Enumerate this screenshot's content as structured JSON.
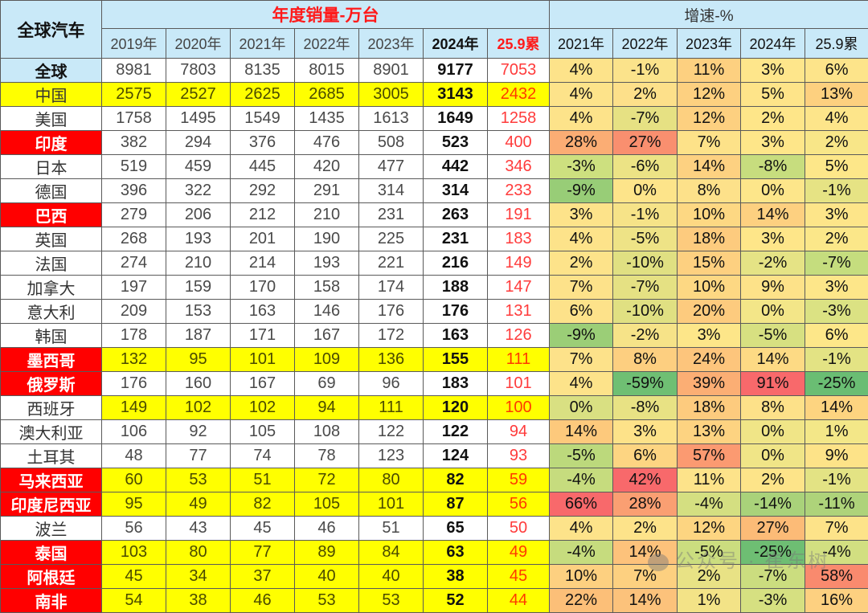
{
  "table": {
    "corner_label": "全球汽车",
    "group_sales_label": "年度销量-万台",
    "group_growth_label": "增速-%",
    "sales_years": [
      "2019年",
      "2020年",
      "2021年",
      "2022年",
      "2023年",
      "2024年",
      "25.9累"
    ],
    "growth_years": [
      "2021年",
      "2022年",
      "2023年",
      "2024年",
      "25.9累"
    ],
    "rows": [
      {
        "country": "全球",
        "style": "total",
        "sales": [
          "8981",
          "7803",
          "8135",
          "8015",
          "8901",
          "9177",
          "7053"
        ],
        "growth": [
          "4%",
          "-1%",
          "11%",
          "3%",
          "6%"
        ],
        "growth_colors": [
          "#fde38a",
          "#fbe38b",
          "#fdd080",
          "#fee68b",
          "#fde48a"
        ]
      },
      {
        "country": "中国",
        "style": "yellow",
        "sales": [
          "2575",
          "2527",
          "2625",
          "2685",
          "3005",
          "3143",
          "2432"
        ],
        "growth": [
          "4%",
          "2%",
          "12%",
          "5%",
          "13%"
        ],
        "growth_colors": [
          "#fde38a",
          "#fde08a",
          "#fdd080",
          "#fee489",
          "#fdd07f"
        ]
      },
      {
        "country": "美国",
        "style": "white",
        "sales": [
          "1758",
          "1495",
          "1549",
          "1435",
          "1613",
          "1649",
          "1258"
        ],
        "growth": [
          "4%",
          "-7%",
          "12%",
          "2%",
          "4%"
        ],
        "growth_colors": [
          "#fde38a",
          "#e6e183",
          "#fdd080",
          "#fee689",
          "#fde58a"
        ]
      },
      {
        "country": "印度",
        "style": "red",
        "sales": [
          "382",
          "294",
          "376",
          "476",
          "508",
          "523",
          "400"
        ],
        "growth": [
          "28%",
          "27%",
          "7%",
          "3%",
          "2%"
        ],
        "growth_colors": [
          "#fbad74",
          "#f98f6f",
          "#fde289",
          "#fee689",
          "#f8e688"
        ]
      },
      {
        "country": "日本",
        "style": "white",
        "sales": [
          "519",
          "459",
          "445",
          "420",
          "477",
          "442",
          "346"
        ],
        "growth": [
          "-3%",
          "-6%",
          "14%",
          "-8%",
          "5%"
        ],
        "growth_colors": [
          "#cde07f",
          "#ece385",
          "#fdd181",
          "#c7dd7e",
          "#fde789"
        ]
      },
      {
        "country": "德国",
        "style": "white",
        "sales": [
          "396",
          "322",
          "292",
          "291",
          "314",
          "314",
          "233"
        ],
        "growth": [
          "-9%",
          "0%",
          "8%",
          "0%",
          "-1%"
        ],
        "growth_colors": [
          "#98cd77",
          "#fde48a",
          "#fde18a",
          "#fde68a",
          "#e6e384"
        ]
      },
      {
        "country": "巴西",
        "style": "red",
        "sales": [
          "279",
          "206",
          "212",
          "210",
          "231",
          "263",
          "191"
        ],
        "growth": [
          "3%",
          "-1%",
          "10%",
          "14%",
          "3%"
        ],
        "growth_colors": [
          "#fde38a",
          "#f6e388",
          "#fdd883",
          "#fdd080",
          "#fde589"
        ]
      },
      {
        "country": "英国",
        "style": "white",
        "sales": [
          "268",
          "193",
          "201",
          "190",
          "225",
          "231",
          "183"
        ],
        "growth": [
          "4%",
          "-5%",
          "18%",
          "3%",
          "2%"
        ],
        "growth_colors": [
          "#fde38a",
          "#eee386",
          "#fdcb7e",
          "#fee689",
          "#fbe789"
        ]
      },
      {
        "country": "法国",
        "style": "white",
        "sales": [
          "274",
          "210",
          "214",
          "193",
          "221",
          "216",
          "149"
        ],
        "growth": [
          "2%",
          "-10%",
          "15%",
          "-2%",
          "-7%"
        ],
        "growth_colors": [
          "#fde38a",
          "#e0e082",
          "#fdd080",
          "#e5e385",
          "#c5dd7e"
        ]
      },
      {
        "country": "加拿大",
        "style": "white",
        "sales": [
          "197",
          "159",
          "170",
          "158",
          "174",
          "188",
          "147"
        ],
        "growth": [
          "7%",
          "-7%",
          "10%",
          "9%",
          "3%"
        ],
        "growth_colors": [
          "#fde28a",
          "#e5e183",
          "#fdd883",
          "#fde289",
          "#fde689"
        ]
      },
      {
        "country": "意大利",
        "style": "white",
        "sales": [
          "209",
          "153",
          "163",
          "146",
          "176",
          "176",
          "131"
        ],
        "growth": [
          "6%",
          "-10%",
          "20%",
          "0%",
          "-3%"
        ],
        "growth_colors": [
          "#fde28a",
          "#e0e082",
          "#fdcb7e",
          "#f3e688",
          "#dbe283"
        ]
      },
      {
        "country": "韩国",
        "style": "white",
        "sales": [
          "178",
          "187",
          "171",
          "167",
          "172",
          "163",
          "126"
        ],
        "growth": [
          "-9%",
          "-2%",
          "3%",
          "-5%",
          "6%"
        ],
        "growth_colors": [
          "#9bce77",
          "#f6e388",
          "#fde689",
          "#d7e081",
          "#fde789"
        ]
      },
      {
        "country": "墨西哥",
        "style": "red-hl",
        "sales": [
          "132",
          "95",
          "101",
          "109",
          "136",
          "155",
          "111"
        ],
        "growth": [
          "7%",
          "8%",
          "24%",
          "14%",
          "-1%"
        ],
        "growth_colors": [
          "#fde28a",
          "#fdcf80",
          "#fdc57c",
          "#fdda84",
          "#e3e384"
        ]
      },
      {
        "country": "俄罗斯",
        "style": "red",
        "sales": [
          "176",
          "160",
          "167",
          "69",
          "96",
          "183",
          "101"
        ],
        "growth": [
          "4%",
          "-59%",
          "39%",
          "91%",
          "-25%"
        ],
        "growth_colors": [
          "#fde38a",
          "#6fbf73",
          "#fbae74",
          "#f8696b",
          "#6abd73"
        ]
      },
      {
        "country": "西班牙",
        "style": "white-hl",
        "sales": [
          "149",
          "102",
          "102",
          "94",
          "111",
          "120",
          "100"
        ],
        "growth": [
          "0%",
          "-8%",
          "18%",
          "8%",
          "14%"
        ],
        "growth_colors": [
          "#d9e082",
          "#e8e284",
          "#fdcb7e",
          "#fde189",
          "#fdd480"
        ]
      },
      {
        "country": "澳大利亚",
        "style": "white",
        "sales": [
          "106",
          "92",
          "105",
          "108",
          "122",
          "122",
          "94"
        ],
        "growth": [
          "14%",
          "3%",
          "13%",
          "0%",
          "1%"
        ],
        "growth_colors": [
          "#fdc97c",
          "#fde289",
          "#fdd381",
          "#f0e587",
          "#f3e788"
        ]
      },
      {
        "country": "土耳其",
        "style": "white",
        "sales": [
          "48",
          "77",
          "74",
          "78",
          "123",
          "124",
          "93"
        ],
        "growth": [
          "-5%",
          "6%",
          "57%",
          "0%",
          "9%"
        ],
        "growth_colors": [
          "#bcd97c",
          "#fdd582",
          "#fb9a71",
          "#f0e587",
          "#fde388"
        ]
      },
      {
        "country": "马来西亚",
        "style": "red-hl",
        "sales": [
          "60",
          "53",
          "51",
          "72",
          "80",
          "82",
          "59"
        ],
        "growth": [
          "-4%",
          "42%",
          "11%",
          "2%",
          "-1%"
        ],
        "growth_colors": [
          "#c6dc7e",
          "#f8696b",
          "#fde38a",
          "#fde489",
          "#e3e384"
        ]
      },
      {
        "country": "印度尼西亚",
        "style": "red-hl",
        "sales": [
          "95",
          "49",
          "82",
          "105",
          "101",
          "87",
          "56"
        ],
        "growth": [
          "66%",
          "28%",
          "-4%",
          "-14%",
          "-11%"
        ],
        "growth_colors": [
          "#f8696b",
          "#fa9f72",
          "#d4df81",
          "#a9d27a",
          "#aed37a"
        ]
      },
      {
        "country": "波兰",
        "style": "white",
        "sales": [
          "56",
          "43",
          "45",
          "46",
          "51",
          "65",
          "50"
        ],
        "growth": [
          "4%",
          "2%",
          "12%",
          "27%",
          "7%"
        ],
        "growth_colors": [
          "#fde38a",
          "#fde38a",
          "#fdd581",
          "#fcbb77",
          "#fde389"
        ]
      },
      {
        "country": "泰国",
        "style": "red-hl",
        "sales": [
          "103",
          "80",
          "77",
          "89",
          "84",
          "63",
          "49"
        ],
        "growth": [
          "-4%",
          "14%",
          "-5%",
          "-25%",
          "-4%"
        ],
        "growth_colors": [
          "#c6dc7e",
          "#fdc27b",
          "#cbdd7f",
          "#6ebe73",
          "#d2df81"
        ]
      },
      {
        "country": "阿根廷",
        "style": "red-hl",
        "sales": [
          "45",
          "34",
          "37",
          "40",
          "40",
          "38",
          "45"
        ],
        "growth": [
          "10%",
          "7%",
          "2%",
          "-7%",
          "58%"
        ],
        "growth_colors": [
          "#fdd080",
          "#fdd080",
          "#e8e285",
          "#cbdd7f",
          "#f98a6e"
        ]
      },
      {
        "country": "南非",
        "style": "red-hl",
        "sales": [
          "54",
          "38",
          "46",
          "53",
          "53",
          "52",
          "44"
        ],
        "growth": [
          "22%",
          "14%",
          "1%",
          "-3%",
          "16%"
        ],
        "growth_colors": [
          "#fcbf78",
          "#fcc27b",
          "#f3e387",
          "#d6e081",
          "#fdd080"
        ]
      }
    ]
  },
  "watermark": {
    "text": "公众号 · 崔东树"
  },
  "chart_data": {
    "type": "table",
    "title": "全球汽车",
    "column_groups": [
      {
        "label": "年度销量-万台",
        "columns": [
          "2019年",
          "2020年",
          "2021年",
          "2022年",
          "2023年",
          "2024年",
          "25.9累"
        ]
      },
      {
        "label": "增速-%",
        "columns": [
          "2021年",
          "2022年",
          "2023年",
          "2024年",
          "25.9累"
        ]
      }
    ],
    "categories": [
      "全球",
      "中国",
      "美国",
      "印度",
      "日本",
      "德国",
      "巴西",
      "英国",
      "法国",
      "加拿大",
      "意大利",
      "韩国",
      "墨西哥",
      "俄罗斯",
      "西班牙",
      "澳大利亚",
      "土耳其",
      "马来西亚",
      "印度尼西亚",
      "波兰",
      "泰国",
      "阿根廷",
      "南非"
    ],
    "series": [
      {
        "name": "2019年",
        "values": [
          8981,
          2575,
          1758,
          382,
          519,
          396,
          279,
          268,
          274,
          197,
          209,
          178,
          132,
          176,
          149,
          106,
          48,
          60,
          95,
          56,
          103,
          45,
          54
        ]
      },
      {
        "name": "2020年",
        "values": [
          7803,
          2527,
          1495,
          294,
          459,
          322,
          206,
          193,
          210,
          159,
          153,
          187,
          95,
          160,
          102,
          92,
          77,
          53,
          49,
          43,
          80,
          34,
          38
        ]
      },
      {
        "name": "2021年",
        "values": [
          8135,
          2625,
          1549,
          376,
          445,
          292,
          212,
          201,
          214,
          170,
          163,
          171,
          101,
          167,
          102,
          105,
          74,
          51,
          82,
          45,
          77,
          37,
          46
        ]
      },
      {
        "name": "2022年",
        "values": [
          8015,
          2685,
          1435,
          476,
          420,
          291,
          210,
          190,
          193,
          158,
          146,
          167,
          109,
          69,
          94,
          108,
          78,
          72,
          105,
          46,
          89,
          40,
          53
        ]
      },
      {
        "name": "2023年",
        "values": [
          8901,
          3005,
          1613,
          508,
          477,
          314,
          231,
          225,
          221,
          174,
          176,
          172,
          136,
          96,
          111,
          122,
          123,
          80,
          101,
          51,
          84,
          40,
          53
        ]
      },
      {
        "name": "2024年",
        "values": [
          9177,
          3143,
          1649,
          523,
          442,
          314,
          263,
          231,
          216,
          188,
          176,
          163,
          155,
          183,
          120,
          122,
          124,
          82,
          87,
          65,
          63,
          38,
          52
        ]
      },
      {
        "name": "25.9累",
        "values": [
          7053,
          2432,
          1258,
          400,
          346,
          233,
          191,
          183,
          149,
          147,
          131,
          126,
          111,
          101,
          100,
          94,
          93,
          59,
          56,
          50,
          49,
          45,
          44
        ]
      },
      {
        "name": "增速2021年(%)",
        "values": [
          4,
          4,
          4,
          28,
          -3,
          -9,
          3,
          4,
          2,
          7,
          6,
          -9,
          7,
          4,
          0,
          14,
          -5,
          -4,
          66,
          4,
          -4,
          10,
          22
        ]
      },
      {
        "name": "增速2022年(%)",
        "values": [
          -1,
          2,
          -7,
          27,
          -6,
          0,
          -1,
          -5,
          -10,
          -7,
          -10,
          -2,
          8,
          -59,
          -8,
          3,
          6,
          42,
          28,
          2,
          14,
          7,
          14
        ]
      },
      {
        "name": "增速2023年(%)",
        "values": [
          11,
          12,
          12,
          7,
          14,
          8,
          10,
          18,
          15,
          10,
          20,
          3,
          24,
          39,
          18,
          13,
          57,
          11,
          -4,
          12,
          -5,
          2,
          1
        ]
      },
      {
        "name": "增速2024年(%)",
        "values": [
          3,
          5,
          2,
          3,
          -8,
          0,
          14,
          3,
          -2,
          9,
          0,
          -5,
          14,
          91,
          8,
          0,
          0,
          2,
          -14,
          27,
          -25,
          -7,
          -3
        ]
      },
      {
        "name": "增速25.9累(%)",
        "values": [
          6,
          13,
          4,
          2,
          5,
          -1,
          3,
          2,
          -7,
          3,
          -3,
          6,
          -1,
          -25,
          14,
          1,
          9,
          -1,
          -11,
          7,
          -4,
          58,
          16
        ]
      }
    ]
  }
}
